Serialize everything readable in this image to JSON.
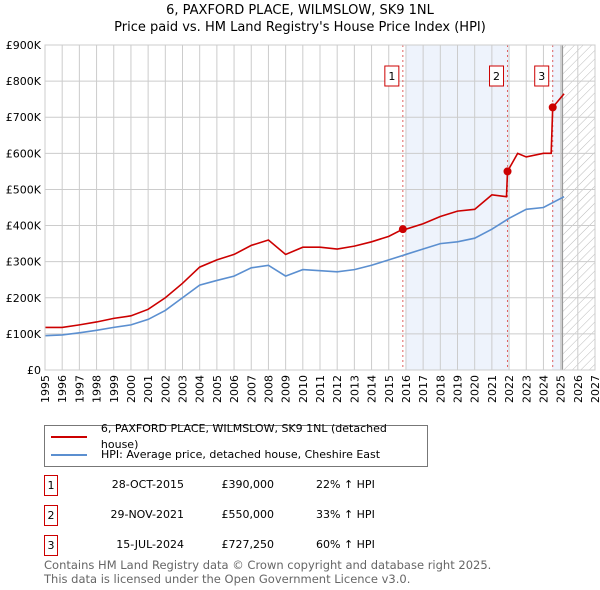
{
  "title_line1": "6, PAXFORD PLACE, WILMSLOW, SK9 1NL",
  "title_line2": "Price paid vs. HM Land Registry's House Price Index (HPI)",
  "colors": {
    "property": "#cc0000",
    "hpi": "#5b8fd0",
    "shade": "#eef3fc"
  },
  "chart_data": {
    "type": "line",
    "xlim": [
      1995,
      2027
    ],
    "ylim": [
      0,
      900000
    ],
    "x_ticks": [
      "1995",
      "1996",
      "1997",
      "1998",
      "1999",
      "2000",
      "2001",
      "2002",
      "2003",
      "2004",
      "2005",
      "2006",
      "2007",
      "2008",
      "2009",
      "2010",
      "2011",
      "2012",
      "2013",
      "2014",
      "2015",
      "2016",
      "2017",
      "2018",
      "2019",
      "2020",
      "2021",
      "2022",
      "2023",
      "2024",
      "2025",
      "2026",
      "2027"
    ],
    "y_ticks": [
      {
        "v": 0,
        "label": "£0"
      },
      {
        "v": 100000,
        "label": "£100K"
      },
      {
        "v": 200000,
        "label": "£200K"
      },
      {
        "v": 300000,
        "label": "£300K"
      },
      {
        "v": 400000,
        "label": "£400K"
      },
      {
        "v": 500000,
        "label": "£500K"
      },
      {
        "v": 600000,
        "label": "£600K"
      },
      {
        "v": 700000,
        "label": "£700K"
      },
      {
        "v": 800000,
        "label": "£800K"
      },
      {
        "v": 900000,
        "label": "£900K"
      }
    ],
    "series": [
      {
        "name": "6, PAXFORD PLACE, WILMSLOW, SK9 1NL (detached house)",
        "color": "#cc0000",
        "x": [
          1995,
          1996,
          1997,
          1998,
          1999,
          2000,
          2001,
          2002,
          2003,
          2004,
          2005,
          2006,
          2007,
          2008,
          2009,
          2010,
          2011,
          2012,
          2013,
          2014,
          2015,
          2015.82,
          2016,
          2017,
          2018,
          2019,
          2020,
          2021,
          2021.85,
          2021.91,
          2022.5,
          2023,
          2024,
          2024.45,
          2024.54,
          2025.2
        ],
        "y": [
          118000,
          118000,
          125000,
          133000,
          143000,
          150000,
          168000,
          200000,
          240000,
          285000,
          305000,
          320000,
          345000,
          360000,
          320000,
          340000,
          340000,
          335000,
          343000,
          355000,
          370000,
          390000,
          390000,
          405000,
          425000,
          440000,
          445000,
          485000,
          480000,
          550000,
          600000,
          590000,
          600000,
          600000,
          727250,
          765000
        ]
      },
      {
        "name": "HPI: Average price, detached house, Cheshire East",
        "color": "#5b8fd0",
        "x": [
          1995,
          1996,
          1997,
          1998,
          1999,
          2000,
          2001,
          2002,
          2003,
          2004,
          2005,
          2006,
          2007,
          2008,
          2009,
          2010,
          2011,
          2012,
          2013,
          2014,
          2015,
          2016,
          2017,
          2018,
          2019,
          2020,
          2021,
          2022,
          2023,
          2024,
          2025.2
        ],
        "y": [
          95000,
          97000,
          103000,
          110000,
          118000,
          125000,
          140000,
          165000,
          200000,
          235000,
          248000,
          260000,
          283000,
          290000,
          260000,
          278000,
          275000,
          272000,
          278000,
          290000,
          305000,
          320000,
          335000,
          350000,
          355000,
          365000,
          390000,
          420000,
          445000,
          450000,
          480000
        ]
      }
    ],
    "sales": [
      {
        "num": "1",
        "x": 2015.82,
        "y": 390000,
        "date": "28-OCT-2015",
        "price": "£390,000",
        "hpi": "22% ↑ HPI"
      },
      {
        "num": "2",
        "x": 2021.91,
        "y": 550000,
        "date": "29-NOV-2021",
        "price": "£550,000",
        "hpi": "33% ↑ HPI"
      },
      {
        "num": "3",
        "x": 2024.54,
        "y": 727250,
        "date": "15-JUL-2024",
        "price": "£727,250",
        "hpi": "60% ↑ HPI"
      }
    ],
    "shaded_ranges": [
      [
        2016,
        2022
      ],
      [
        2024.5,
        2025
      ]
    ],
    "forecast_from": 2025.1,
    "legend_placement": "below"
  },
  "legend": {
    "property": "6, PAXFORD PLACE, WILMSLOW, SK9 1NL (detached house)",
    "hpi": "HPI: Average price, detached house, Cheshire East"
  },
  "footer": {
    "line1": "Contains HM Land Registry data © Crown copyright and database right 2025.",
    "line2": "This data is licensed under the Open Government Licence v3.0."
  }
}
